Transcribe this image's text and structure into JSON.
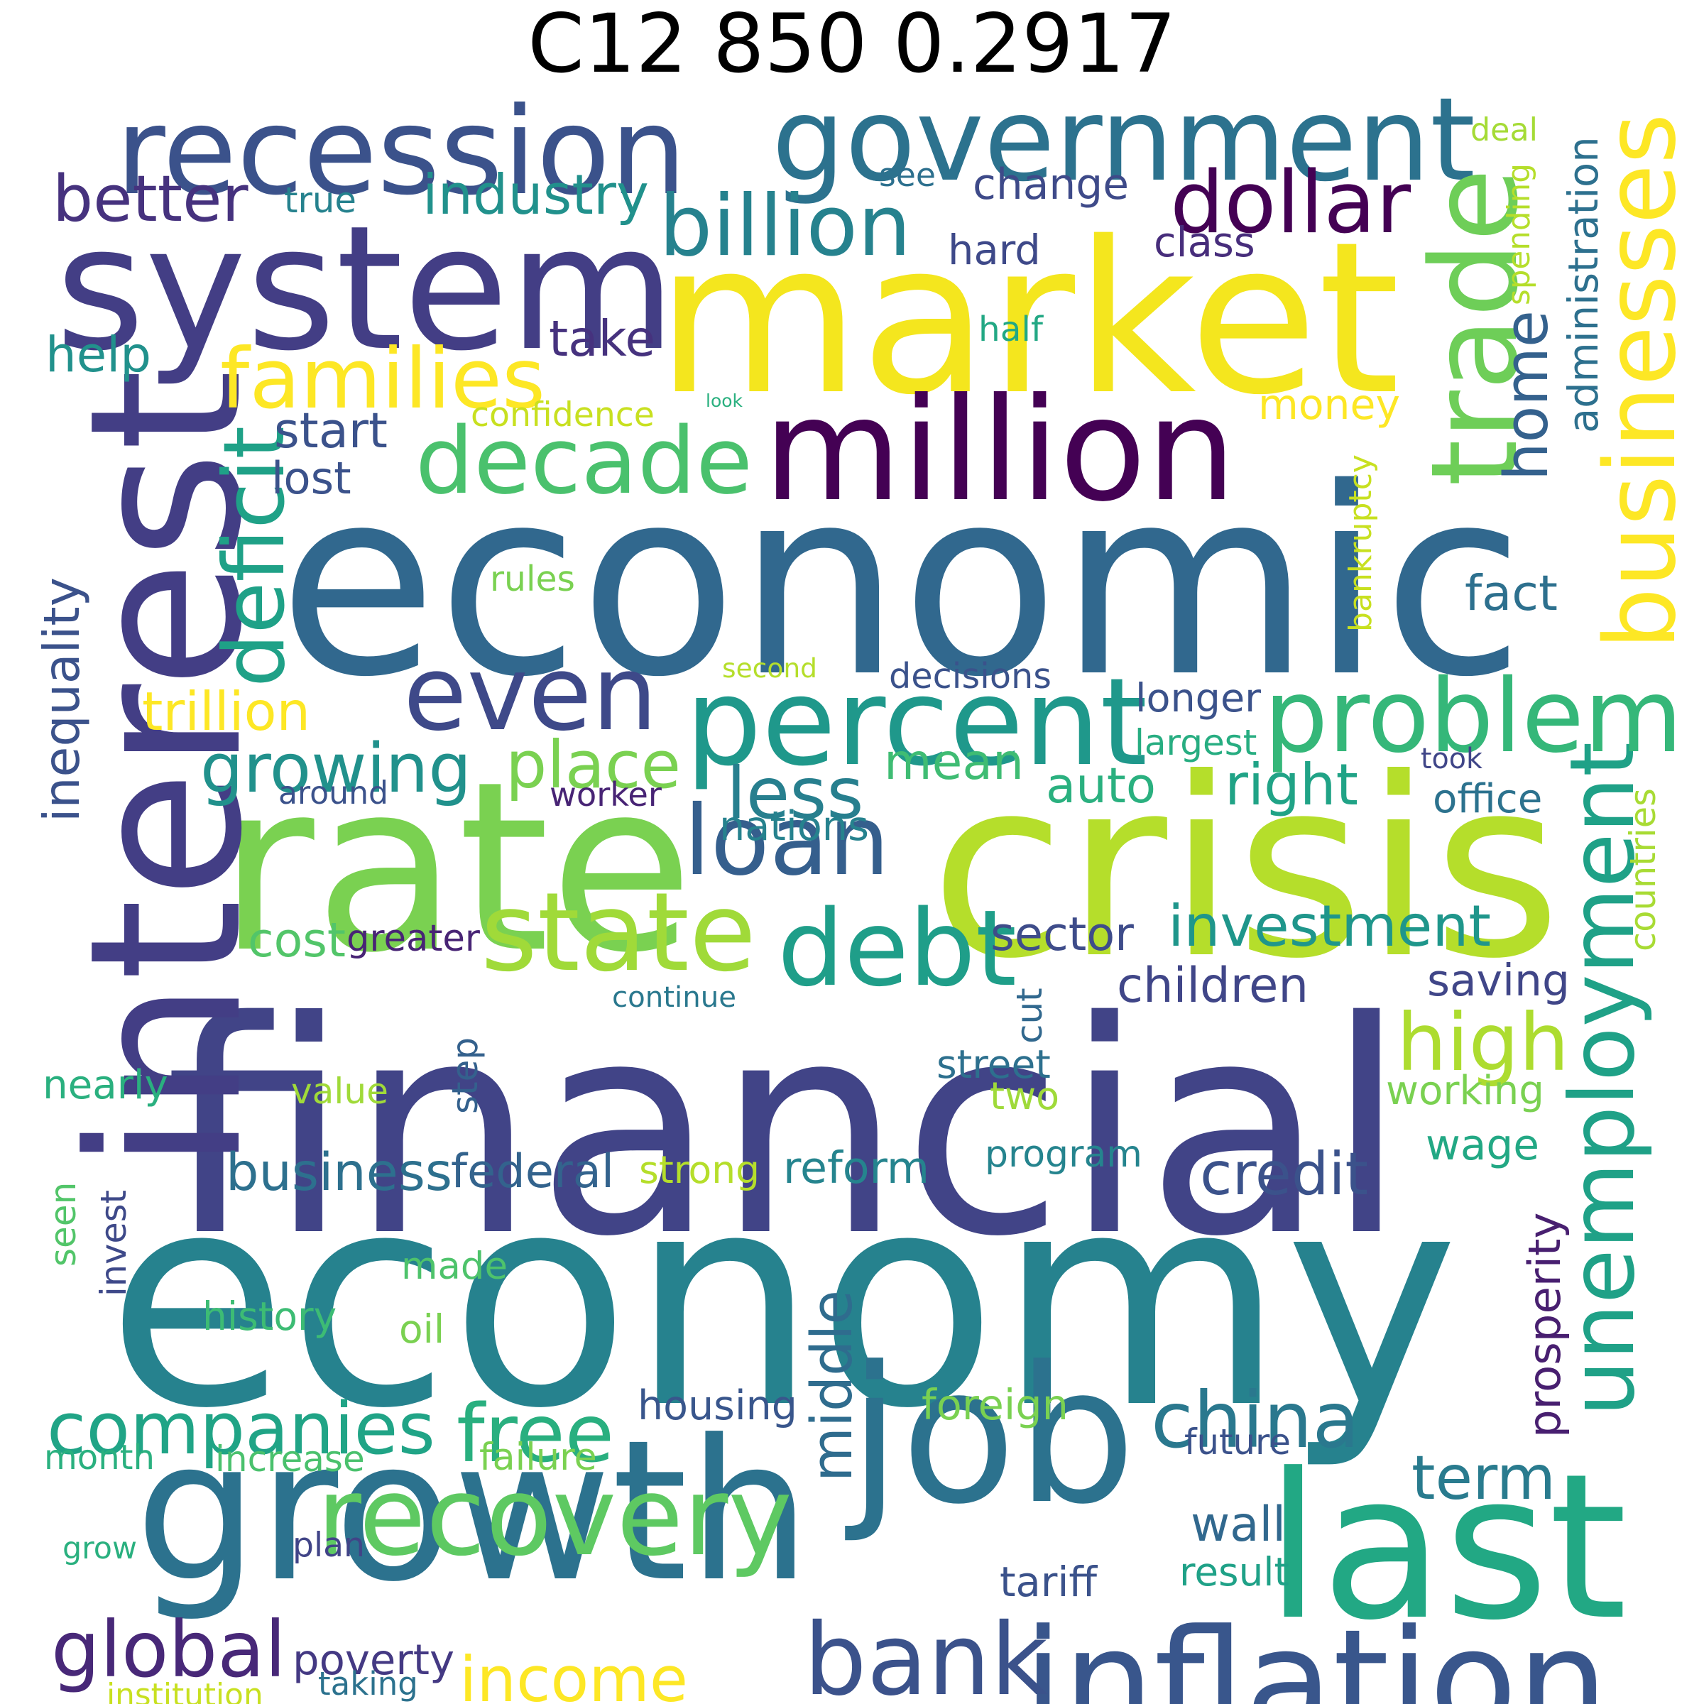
{
  "title": "C12 850 0.2917",
  "words": [
    {
      "text": "economy",
      "color": "#26828e"
    },
    {
      "text": "financial",
      "color": "#414487"
    },
    {
      "text": "economic",
      "color": "#31688e"
    },
    {
      "text": "market",
      "color": "#f4e61e"
    },
    {
      "text": "rate",
      "color": "#7ad151"
    },
    {
      "text": "crisis",
      "color": "#b5de2b"
    },
    {
      "text": "interest",
      "color": "#433e85"
    },
    {
      "text": "system",
      "color": "#433e85"
    },
    {
      "text": "job",
      "color": "#2c728e"
    },
    {
      "text": "growth",
      "color": "#2c728e"
    },
    {
      "text": "last",
      "color": "#22a884"
    },
    {
      "text": "government",
      "color": "#2c728e"
    },
    {
      "text": "recession",
      "color": "#3b528b"
    },
    {
      "text": "million",
      "color": "#440154"
    },
    {
      "text": "unemployment",
      "color": "#1fa187"
    },
    {
      "text": "businesses",
      "color": "#fde725"
    },
    {
      "text": "trade",
      "color": "#6ece58"
    },
    {
      "text": "inflation",
      "color": "#39568c"
    },
    {
      "text": "bank",
      "color": "#3b528b"
    },
    {
      "text": "recovery",
      "color": "#5ec962"
    },
    {
      "text": "percent",
      "color": "#1f988b"
    },
    {
      "text": "problem",
      "color": "#35b779"
    },
    {
      "text": "decade",
      "color": "#4ac16d"
    },
    {
      "text": "state",
      "color": "#a0da39"
    },
    {
      "text": "even",
      "color": "#3e4989"
    },
    {
      "text": "loan",
      "color": "#355f8d"
    },
    {
      "text": "debt",
      "color": "#1f9e89"
    },
    {
      "text": "companies",
      "color": "#20a486"
    },
    {
      "text": "free",
      "color": "#29af7f"
    },
    {
      "text": "china",
      "color": "#2a788e"
    },
    {
      "text": "global",
      "color": "#482878"
    },
    {
      "text": "income",
      "color": "#fde725"
    },
    {
      "text": "dollar",
      "color": "#440154"
    },
    {
      "text": "billion",
      "color": "#26828e"
    },
    {
      "text": "families",
      "color": "#fde725"
    },
    {
      "text": "deficit",
      "color": "#1fa187"
    },
    {
      "text": "growing",
      "color": "#21918c"
    },
    {
      "text": "investment",
      "color": "#1f968b"
    },
    {
      "text": "high",
      "color": "#addc30"
    },
    {
      "text": "middle",
      "color": "#2f6c8e"
    },
    {
      "text": "term",
      "color": "#297b8e"
    },
    {
      "text": "place",
      "color": "#7ad151"
    },
    {
      "text": "less",
      "color": "#277f8e"
    },
    {
      "text": "mean",
      "color": "#3fbc73"
    },
    {
      "text": "home",
      "color": "#34618d"
    },
    {
      "text": "better",
      "color": "#46327e"
    },
    {
      "text": "industry",
      "color": "#21918c"
    },
    {
      "text": "business",
      "color": "#2d708e"
    },
    {
      "text": "federal",
      "color": "#33638d"
    },
    {
      "text": "reform",
      "color": "#25848e"
    },
    {
      "text": "credit",
      "color": "#3b528b"
    },
    {
      "text": "wage",
      "color": "#22a884"
    },
    {
      "text": "auto",
      "color": "#2ab07f"
    },
    {
      "text": "right",
      "color": "#20a386"
    },
    {
      "text": "money",
      "color": "#fde725"
    },
    {
      "text": "change",
      "color": "#3e4a89"
    },
    {
      "text": "take",
      "color": "#46327e"
    },
    {
      "text": "help",
      "color": "#21918c"
    },
    {
      "text": "trillion",
      "color": "#fde725"
    },
    {
      "text": "inequality",
      "color": "#3b528b"
    },
    {
      "text": "cost",
      "color": "#52c569"
    },
    {
      "text": "sector",
      "color": "#3e4c8a"
    },
    {
      "text": "children",
      "color": "#404688"
    },
    {
      "text": "saving",
      "color": "#404688"
    },
    {
      "text": "working",
      "color": "#7ad151"
    },
    {
      "text": "made",
      "color": "#4ec36b"
    },
    {
      "text": "housing",
      "color": "#39568c"
    },
    {
      "text": "prosperity",
      "color": "#481f70"
    },
    {
      "text": "wall",
      "color": "#31688e"
    },
    {
      "text": "start",
      "color": "#3b528b"
    },
    {
      "text": "lost",
      "color": "#3b528b"
    },
    {
      "text": "nations",
      "color": "#26828e"
    },
    {
      "text": "fact",
      "color": "#2d708e"
    },
    {
      "text": "two",
      "color": "#9fda3a"
    },
    {
      "text": "program",
      "color": "#25848e"
    },
    {
      "text": "hard",
      "color": "#3e4989"
    },
    {
      "text": "class",
      "color": "#472d7b"
    },
    {
      "text": "administration",
      "color": "#2d708e"
    },
    {
      "text": "spending",
      "color": "#b5de2b"
    },
    {
      "text": "deal",
      "color": "#a5db36"
    },
    {
      "text": "see",
      "color": "#2d708e"
    },
    {
      "text": "true",
      "color": "#26828e"
    },
    {
      "text": "half",
      "color": "#22a884"
    },
    {
      "text": "look",
      "color": "#2ab07f"
    },
    {
      "text": "confidence",
      "color": "#c8e020"
    },
    {
      "text": "bankruptcy",
      "color": "#c8e020"
    },
    {
      "text": "rules",
      "color": "#7ad151"
    },
    {
      "text": "second",
      "color": "#b5de2b"
    },
    {
      "text": "decisions",
      "color": "#3b528b"
    },
    {
      "text": "longer",
      "color": "#3b528b"
    },
    {
      "text": "largest",
      "color": "#27ad81"
    },
    {
      "text": "took",
      "color": "#404688"
    },
    {
      "text": "office",
      "color": "#2c728e"
    },
    {
      "text": "countries",
      "color": "#a8db34"
    },
    {
      "text": "around",
      "color": "#3b528b"
    },
    {
      "text": "worker",
      "color": "#482475"
    },
    {
      "text": "greater",
      "color": "#482475"
    },
    {
      "text": "continue",
      "color": "#2a788e"
    },
    {
      "text": "cut",
      "color": "#31688e"
    },
    {
      "text": "street",
      "color": "#2d708e"
    },
    {
      "text": "step",
      "color": "#34618d"
    },
    {
      "text": "nearly",
      "color": "#2ab07f"
    },
    {
      "text": "value",
      "color": "#a0da39"
    },
    {
      "text": "strong",
      "color": "#b5de2b"
    },
    {
      "text": "seen",
      "color": "#52c569"
    },
    {
      "text": "invest",
      "color": "#3e4989"
    },
    {
      "text": "history",
      "color": "#3dbc74"
    },
    {
      "text": "oil",
      "color": "#7ad151"
    },
    {
      "text": "foreign",
      "color": "#7ad151"
    },
    {
      "text": "future",
      "color": "#3b528b"
    },
    {
      "text": "month",
      "color": "#2ab07f"
    },
    {
      "text": "increase",
      "color": "#4ac16d"
    },
    {
      "text": "failure",
      "color": "#7ad151"
    },
    {
      "text": "grow",
      "color": "#2ab07f"
    },
    {
      "text": "plan",
      "color": "#414487"
    },
    {
      "text": "tariff",
      "color": "#3b528b"
    },
    {
      "text": "result",
      "color": "#1fa187"
    },
    {
      "text": "poverty",
      "color": "#443983"
    },
    {
      "text": "taking",
      "color": "#2c728e"
    },
    {
      "text": "institution",
      "color": "#c8e020"
    }
  ]
}
